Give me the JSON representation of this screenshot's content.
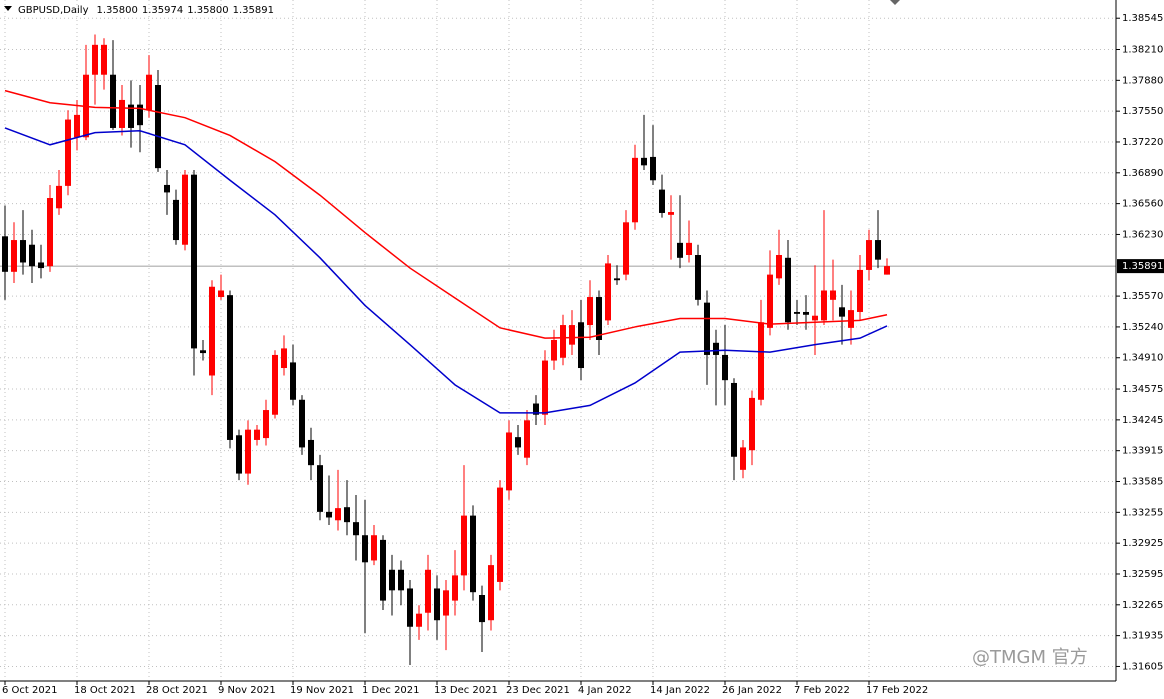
{
  "chart_data": {
    "type": "candlestick",
    "title": "GBPUSD,Daily",
    "header_values": [
      "1.35800",
      "1.35974",
      "1.35800",
      "1.35891"
    ],
    "categories": [
      "6 Oct 2021",
      null,
      null,
      null,
      null,
      null,
      null,
      null,
      "18 Oct 2021",
      null,
      null,
      null,
      null,
      null,
      null,
      null,
      "28 Oct 2021",
      null,
      null,
      null,
      null,
      null,
      null,
      null,
      "9 Nov 2021",
      null,
      null,
      null,
      null,
      null,
      null,
      null,
      "19 Nov 2021",
      null,
      null,
      null,
      null,
      null,
      null,
      null,
      "1 Dec 2021",
      null,
      null,
      null,
      null,
      null,
      null,
      null,
      "13 Dec 2021",
      null,
      null,
      null,
      null,
      null,
      null,
      null,
      "23 Dec 2021",
      null,
      null,
      null,
      null,
      null,
      null,
      null,
      "4 Jan 2022",
      null,
      null,
      null,
      null,
      null,
      null,
      null,
      "14 Jan 2022",
      null,
      null,
      null,
      null,
      null,
      null,
      null,
      "26 Jan 2022",
      null,
      null,
      null,
      null,
      null,
      null,
      null,
      "7 Feb 2022",
      null,
      null,
      null,
      null,
      null,
      null,
      null,
      "17 Feb 2022",
      null,
      null
    ],
    "ohlc": [
      [
        1.3621,
        1.3654,
        1.3553,
        1.3583
      ],
      [
        1.3583,
        1.3636,
        1.3571,
        1.3617
      ],
      [
        1.3617,
        1.3649,
        1.358,
        1.3593
      ],
      [
        1.3612,
        1.3628,
        1.3571,
        1.3589
      ],
      [
        1.3593,
        1.3612,
        1.3576,
        1.3587
      ],
      [
        1.3589,
        1.3676,
        1.3583,
        1.3662
      ],
      [
        1.3651,
        1.3692,
        1.3644,
        1.3675
      ],
      [
        1.3675,
        1.3756,
        1.3665,
        1.3746
      ],
      [
        1.3727,
        1.3767,
        1.3713,
        1.3751
      ],
      [
        1.3727,
        1.3826,
        1.3724,
        1.3794
      ],
      [
        1.3794,
        1.3837,
        1.3762,
        1.3826
      ],
      [
        1.3794,
        1.3833,
        1.3778,
        1.3826
      ],
      [
        1.3794,
        1.3831,
        1.3735,
        1.3737
      ],
      [
        1.3737,
        1.3783,
        1.3729,
        1.3767
      ],
      [
        1.3762,
        1.3788,
        1.3716,
        1.3737
      ],
      [
        1.3762,
        1.3783,
        1.3711,
        1.374
      ],
      [
        1.3756,
        1.3815,
        1.3748,
        1.3794
      ],
      [
        1.3783,
        1.3799,
        1.369,
        1.3694
      ],
      [
        1.3676,
        1.3692,
        1.3644,
        1.3668
      ],
      [
        1.366,
        1.3671,
        1.3612,
        1.3617
      ],
      [
        1.3612,
        1.3692,
        1.3606,
        1.3687
      ],
      [
        1.3687,
        1.3692,
        1.3472,
        1.3501
      ],
      [
        1.3499,
        1.351,
        1.3488,
        1.3496
      ],
      [
        1.3472,
        1.3574,
        1.3451,
        1.3567
      ],
      [
        1.3556,
        1.358,
        1.3553,
        1.3563
      ],
      [
        1.3558,
        1.3563,
        1.3394,
        1.3403
      ],
      [
        1.3408,
        1.3414,
        1.336,
        1.3367
      ],
      [
        1.3367,
        1.3424,
        1.3355,
        1.3414
      ],
      [
        1.3403,
        1.3419,
        1.3397,
        1.3414
      ],
      [
        1.3405,
        1.3446,
        1.3397,
        1.3435
      ],
      [
        1.343,
        1.3499,
        1.3426,
        1.3494
      ],
      [
        1.348,
        1.3515,
        1.3472,
        1.3501
      ],
      [
        1.3486,
        1.3505,
        1.344,
        1.3446
      ],
      [
        1.3446,
        1.3451,
        1.3387,
        1.3395
      ],
      [
        1.3403,
        1.3416,
        1.336,
        1.3376
      ],
      [
        1.3376,
        1.3387,
        1.3317,
        1.3326
      ],
      [
        1.3326,
        1.3365,
        1.3312,
        1.332
      ],
      [
        1.3317,
        1.3371,
        1.3306,
        1.333
      ],
      [
        1.3331,
        1.336,
        1.3301,
        1.3315
      ],
      [
        1.3315,
        1.3344,
        1.3274,
        1.3301
      ],
      [
        1.3301,
        1.3339,
        1.3196,
        1.3272
      ],
      [
        1.3274,
        1.3312,
        1.3269,
        1.3301
      ],
      [
        1.3296,
        1.3301,
        1.3221,
        1.3231
      ],
      [
        1.3264,
        1.328,
        1.3215,
        1.3242
      ],
      [
        1.3264,
        1.3274,
        1.3226,
        1.3242
      ],
      [
        1.3244,
        1.3253,
        1.3162,
        1.3203
      ],
      [
        1.3203,
        1.3226,
        1.3189,
        1.3217
      ],
      [
        1.3218,
        1.328,
        1.3199,
        1.3264
      ],
      [
        1.3244,
        1.3258,
        1.3189,
        1.321
      ],
      [
        1.3215,
        1.3253,
        1.3178,
        1.3242
      ],
      [
        1.3231,
        1.3285,
        1.3215,
        1.3258
      ],
      [
        1.3258,
        1.3376,
        1.3242,
        1.3322
      ],
      [
        1.3322,
        1.3333,
        1.3231,
        1.324
      ],
      [
        1.3237,
        1.3247,
        1.3176,
        1.3208
      ],
      [
        1.321,
        1.328,
        1.3199,
        1.3269
      ],
      [
        1.3251,
        1.336,
        1.3242,
        1.3352
      ],
      [
        1.3349,
        1.3424,
        1.3339,
        1.3411
      ],
      [
        1.3406,
        1.3419,
        1.3387,
        1.3395
      ],
      [
        1.3384,
        1.3435,
        1.3376,
        1.3424
      ],
      [
        1.3442,
        1.3451,
        1.3419,
        1.343
      ],
      [
        1.343,
        1.3499,
        1.3419,
        1.3488
      ],
      [
        1.3488,
        1.3521,
        1.3478,
        1.351
      ],
      [
        1.3491,
        1.3537,
        1.3483,
        1.3526
      ],
      [
        1.3505,
        1.3542,
        1.3494,
        1.3526
      ],
      [
        1.3529,
        1.3553,
        1.3467,
        1.348
      ],
      [
        1.3526,
        1.3574,
        1.351,
        1.3556
      ],
      [
        1.3556,
        1.3563,
        1.3494,
        1.351
      ],
      [
        1.3531,
        1.3601,
        1.3526,
        1.3592
      ],
      [
        1.3576,
        1.359,
        1.3569,
        1.3574
      ],
      [
        1.358,
        1.3649,
        1.3574,
        1.3636
      ],
      [
        1.3636,
        1.3719,
        1.3628,
        1.3705
      ],
      [
        1.3705,
        1.3751,
        1.3692,
        1.3697
      ],
      [
        1.3706,
        1.374,
        1.3676,
        1.3681
      ],
      [
        1.3671,
        1.3687,
        1.3641,
        1.3646
      ],
      [
        1.3644,
        1.3665,
        1.3596,
        1.3647
      ],
      [
        1.3614,
        1.3665,
        1.3587,
        1.3598
      ],
      [
        1.3601,
        1.3638,
        1.3593,
        1.3614
      ],
      [
        1.3601,
        1.3612,
        1.3547,
        1.3553
      ],
      [
        1.355,
        1.3563,
        1.3462,
        1.3494
      ],
      [
        1.3507,
        1.3521,
        1.344,
        1.3494
      ],
      [
        1.3494,
        1.3526,
        1.344,
        1.3467
      ],
      [
        1.3464,
        1.3469,
        1.336,
        1.3385
      ],
      [
        1.3371,
        1.3403,
        1.3362,
        1.3395
      ],
      [
        1.3392,
        1.3456,
        1.3376,
        1.3448
      ],
      [
        1.3446,
        1.3553,
        1.344,
        1.3529
      ],
      [
        1.3523,
        1.3606,
        1.3515,
        1.358
      ],
      [
        1.3576,
        1.3628,
        1.3569,
        1.3601
      ],
      [
        1.3598,
        1.3617,
        1.3521,
        1.3529
      ],
      [
        1.354,
        1.3553,
        1.3526,
        1.3538
      ],
      [
        1.354,
        1.3558,
        1.3521,
        1.3537
      ],
      [
        1.3531,
        1.359,
        1.3494,
        1.3536
      ],
      [
        1.3531,
        1.3649,
        1.3526,
        1.3563
      ],
      [
        1.3553,
        1.3596,
        1.3531,
        1.3563
      ],
      [
        1.3545,
        1.3569,
        1.3505,
        1.3535
      ],
      [
        1.3523,
        1.3563,
        1.3505,
        1.3542
      ],
      [
        1.354,
        1.3601,
        1.3531,
        1.3585
      ],
      [
        1.3585,
        1.3628,
        1.3574,
        1.3617
      ],
      [
        1.3617,
        1.3649,
        1.3587,
        1.3596
      ],
      [
        1.358,
        1.35974,
        1.358,
        1.35891
      ]
    ],
    "up_color": "#ff0000",
    "down_color": "#000000",
    "lines": [
      {
        "color": "#ff0000",
        "x": [
          0,
          5,
          10,
          15,
          20,
          25,
          30,
          35,
          40,
          45,
          50,
          55,
          60,
          65,
          70,
          75,
          80,
          85,
          90,
          95,
          98
        ],
        "values": [
          1.3777,
          1.3764,
          1.3759,
          1.3758,
          1.3748,
          1.3729,
          1.3701,
          1.3665,
          1.3625,
          1.3587,
          1.3555,
          1.3523,
          1.3512,
          1.3513,
          1.3524,
          1.3533,
          1.3533,
          1.3527,
          1.3529,
          1.3531,
          1.3537
        ]
      },
      {
        "color": "#0000cc",
        "x": [
          0,
          5,
          10,
          15,
          20,
          25,
          30,
          35,
          40,
          45,
          50,
          55,
          60,
          65,
          70,
          75,
          80,
          85,
          90,
          95,
          98
        ],
        "values": [
          1.3737,
          1.3719,
          1.3732,
          1.3734,
          1.3719,
          1.3681,
          1.3644,
          1.3598,
          1.3547,
          1.3505,
          1.3462,
          1.3432,
          1.3432,
          1.344,
          1.3464,
          1.3497,
          1.3499,
          1.3497,
          1.3505,
          1.3512,
          1.3525
        ]
      }
    ],
    "ylim": [
      1.3146,
      1.3874
    ],
    "yticks": [
      1.38545,
      {
        "value": 1.3821,
        "label": "1.38210"
      },
      {
        "value": 1.3788,
        "label": "1.37880"
      },
      {
        "value": 1.3755,
        "label": "1.37550"
      },
      {
        "value": 1.3722,
        "label": "1.37220"
      },
      {
        "value": 1.3689,
        "label": "1.36890"
      },
      {
        "value": 1.3656,
        "label": "1.36560"
      },
      {
        "value": 1.3623,
        "label": "1.36230"
      },
      {
        "value": 1.3557,
        "label": "1.35570"
      },
      {
        "value": 1.3524,
        "label": "1.35240"
      },
      {
        "value": 1.3491,
        "label": "1.34910"
      },
      1.34575,
      1.34245,
      1.33915,
      1.33585,
      1.33255,
      1.32925,
      1.32595,
      1.32265,
      1.31935,
      1.31605
    ],
    "last_price": {
      "value": 1.35891,
      "label": "1.35891"
    },
    "grid": true
  },
  "watermark": "@TMGM 官方"
}
